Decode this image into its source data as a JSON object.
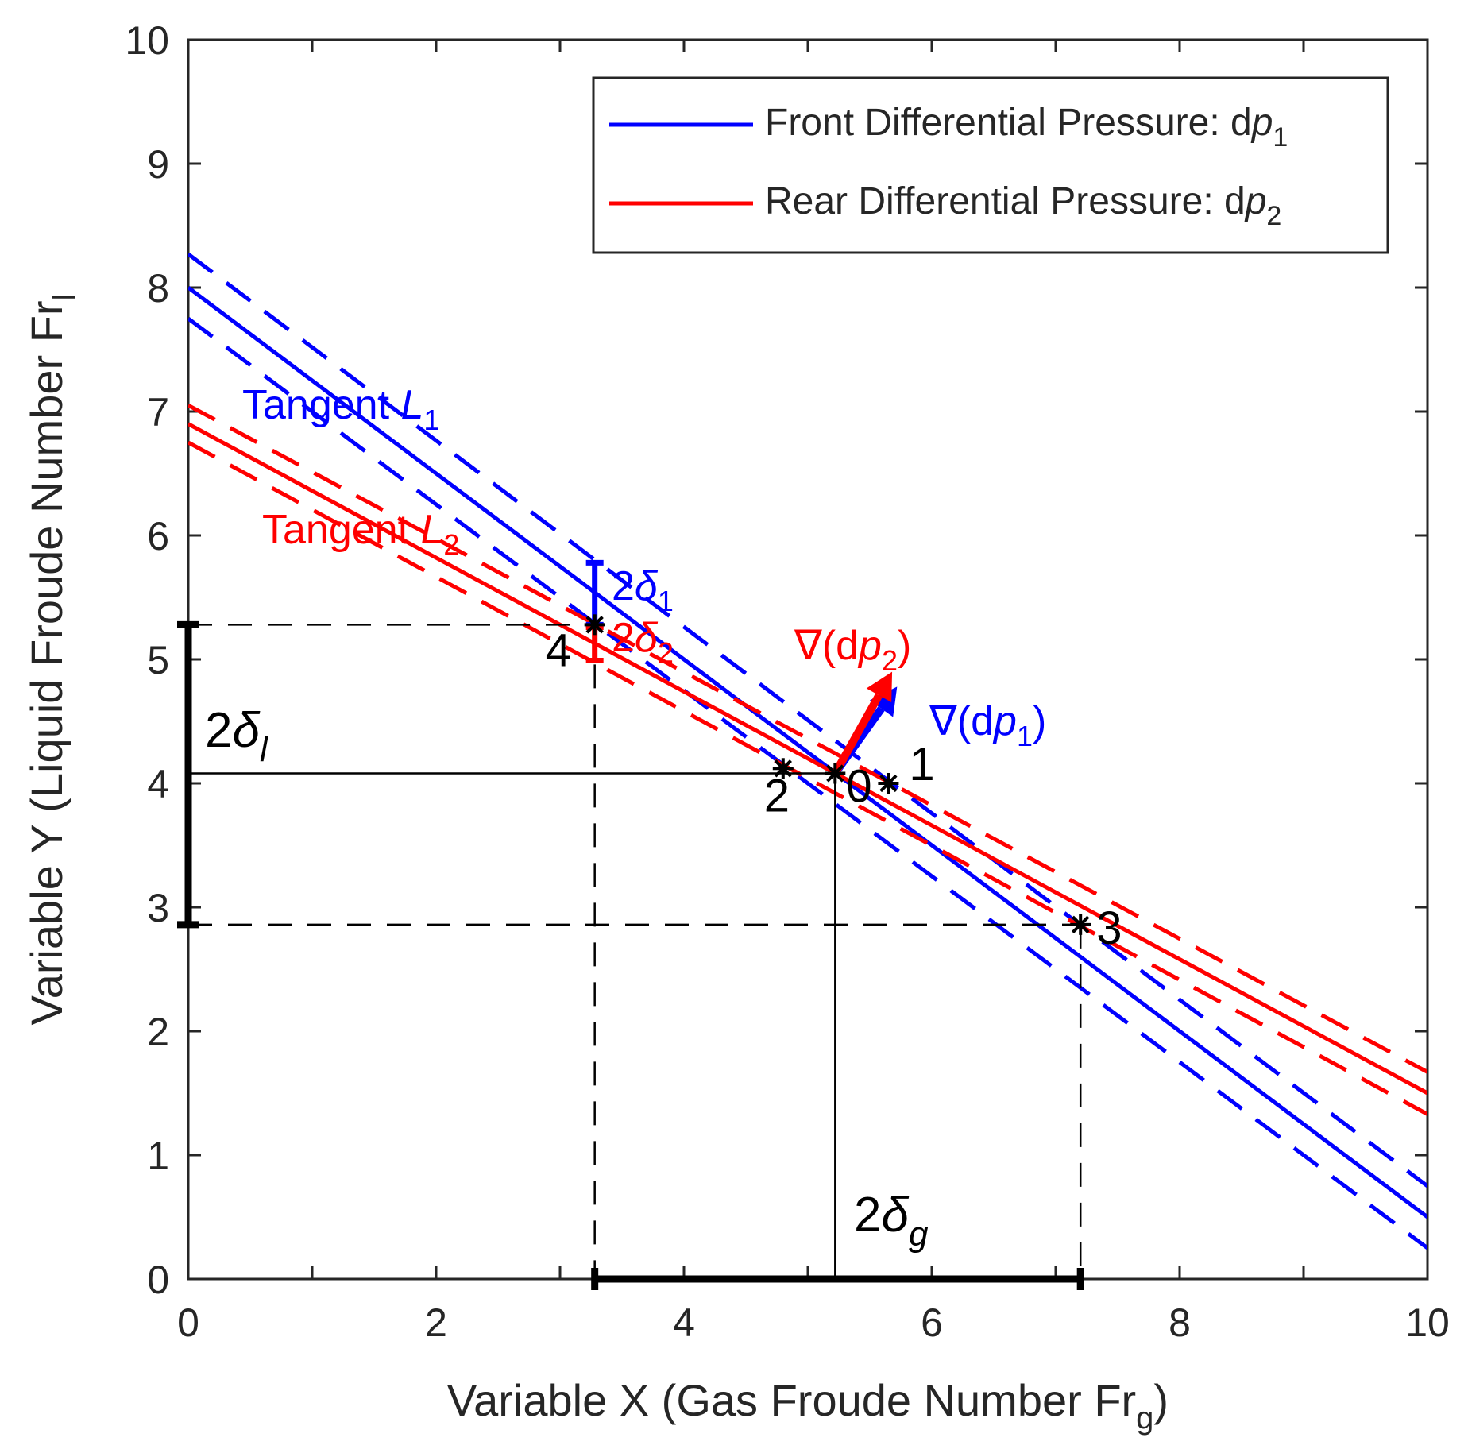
{
  "chart_data": {
    "type": "line",
    "xlabel_main": "Variable X (Gas Froude Number Fr",
    "xlabel_sub": "g",
    "xlabel_close": ")",
    "ylabel_main": "Variable Y (Liquid Froude Number Fr",
    "ylabel_sub": "l",
    "xlim": [
      0,
      10
    ],
    "ylim": [
      0,
      10
    ],
    "xticks": [
      0,
      2,
      4,
      6,
      8,
      10
    ],
    "yticks": [
      0,
      1,
      2,
      3,
      4,
      5,
      6,
      7,
      8,
      9,
      10
    ],
    "minor_ticks": [
      1,
      3,
      5,
      7,
      9
    ],
    "legend": [
      {
        "label": "Front Differential Pressure: d",
        "italic": "p",
        "sub": "1",
        "color": "#0000ff"
      },
      {
        "label": "Rear Differential Pressure: d",
        "italic": "p",
        "sub": "2",
        "color": "#ff0000"
      }
    ],
    "series": [
      {
        "name": "dp1 tangent L1",
        "color": "#0000ff",
        "style": "solid",
        "x": [
          0,
          10
        ],
        "y": [
          8.0,
          0.5
        ]
      },
      {
        "name": "dp1 upper bound",
        "color": "#0000ff",
        "style": "dashed",
        "x": [
          0,
          10
        ],
        "y": [
          8.27,
          0.75
        ]
      },
      {
        "name": "dp1 lower bound",
        "color": "#0000ff",
        "style": "dashed",
        "x": [
          0,
          10
        ],
        "y": [
          7.75,
          0.25
        ]
      },
      {
        "name": "dp2 tangent L2",
        "color": "#ff0000",
        "style": "solid",
        "x": [
          0,
          10
        ],
        "y": [
          6.9,
          1.5
        ]
      },
      {
        "name": "dp2 upper bound",
        "color": "#ff0000",
        "style": "dashed",
        "x": [
          0,
          10
        ],
        "y": [
          7.05,
          1.67
        ]
      },
      {
        "name": "dp2 lower bound",
        "color": "#ff0000",
        "style": "dashed",
        "x": [
          0,
          10
        ],
        "y": [
          6.75,
          1.33
        ]
      }
    ],
    "points": [
      {
        "label": "0",
        "x": 5.22,
        "y": 4.08
      },
      {
        "label": "1",
        "x": 5.65,
        "y": 4.0
      },
      {
        "label": "2",
        "x": 4.8,
        "y": 4.12
      },
      {
        "label": "3",
        "x": 7.2,
        "y": 2.86
      },
      {
        "label": "4",
        "x": 3.28,
        "y": 5.28
      }
    ],
    "reference_lines": {
      "x_low": 3.28,
      "x_center": 5.22,
      "x_high": 7.2,
      "y_low": 2.86,
      "y_center": 4.08,
      "y_high": 5.28
    },
    "error_bars": [
      {
        "name": "2δ1",
        "color": "#0000ff",
        "x": 3.28,
        "y_low": 5.28,
        "y_high": 5.78
      },
      {
        "name": "2δ2",
        "color": "#ff0000",
        "x": 3.28,
        "y_low": 4.99,
        "y_high": 5.26
      }
    ],
    "gradient_arrows": [
      {
        "name": "∇(dp1)",
        "color": "#0000ff",
        "from": [
          5.22,
          4.08
        ],
        "to": [
          5.72,
          4.78
        ]
      },
      {
        "name": "∇(dp2)",
        "color": "#ff0000",
        "from": [
          5.22,
          4.08
        ],
        "to": [
          5.68,
          4.9
        ]
      }
    ],
    "annotations": {
      "tangent1": {
        "text": "Tangent ",
        "italic": "L",
        "sub": "1",
        "color": "#0000ff"
      },
      "tangent2": {
        "text": "Tangent ",
        "italic": "L",
        "sub": "2",
        "color": "#ff0000"
      },
      "delta1": {
        "text": "2",
        "greek": "δ",
        "sub": "1",
        "color": "#0000ff"
      },
      "delta2": {
        "text": "2",
        "greek": "δ",
        "sub": "2",
        "color": "#ff0000"
      },
      "grad2": {
        "pre": "∇(d",
        "italic": "p",
        "sub": "2",
        "post": ")",
        "color": "#ff0000"
      },
      "grad1": {
        "pre": "∇(d",
        "italic": "p",
        "sub": "1",
        "post": ")",
        "color": "#0000ff"
      },
      "delta_l": {
        "text": "2",
        "greek": "δ",
        "sub": "l",
        "color": "#000000"
      },
      "delta_g": {
        "text": "2",
        "greek": "δ",
        "sub": "g",
        "color": "#000000"
      }
    }
  }
}
